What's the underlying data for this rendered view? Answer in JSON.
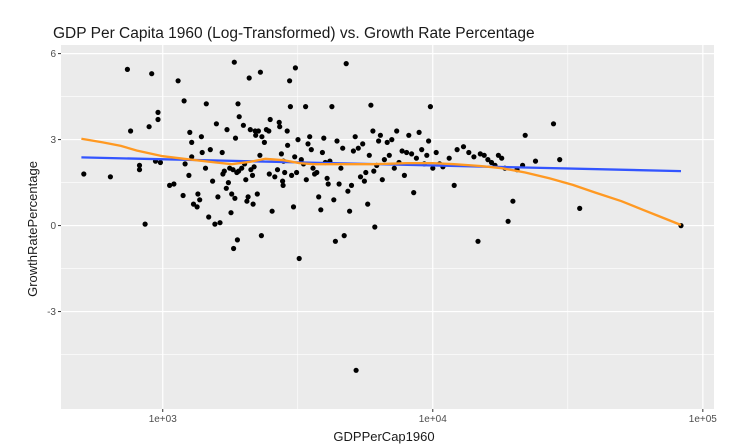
{
  "chart_data": {
    "type": "scatter",
    "title": "GDP Per Capita 1960 (Log-Transformed) vs. Growth Rate Percentage",
    "xlabel": "GDPPerCap1960",
    "ylabel": "GrowthRatePercentage",
    "x_scale": "log10",
    "xlim": [
      420,
      110000
    ],
    "ylim": [
      -6.4,
      6.3
    ],
    "x_ticks": [
      1000,
      10000,
      100000
    ],
    "x_tick_labels": [
      "1e+03",
      "1e+04",
      "1e+05"
    ],
    "y_ticks": [
      -3,
      0,
      3,
      6
    ],
    "y_tick_labels": [
      "-3",
      "0",
      "3",
      "6"
    ],
    "grid": true,
    "legend": "none",
    "colors": {
      "points": "#000000",
      "linear_fit": "#3355ff",
      "loess_fit": "#ff9922",
      "panel": "#ebebeb",
      "grid": "#ffffff"
    },
    "series": [
      {
        "kind": "points",
        "points": [
          [
            510,
            1.8
          ],
          [
            640,
            1.7
          ],
          [
            740,
            5.45
          ],
          [
            760,
            3.3
          ],
          [
            820,
            2.1
          ],
          [
            820,
            1.95
          ],
          [
            860,
            0.05
          ],
          [
            890,
            3.45
          ],
          [
            910,
            5.3
          ],
          [
            940,
            2.25
          ],
          [
            960,
            3.7
          ],
          [
            960,
            3.95
          ],
          [
            980,
            2.2
          ],
          [
            1060,
            1.4
          ],
          [
            1100,
            1.45
          ],
          [
            1140,
            5.05
          ],
          [
            1190,
            1.05
          ],
          [
            1200,
            4.35
          ],
          [
            1210,
            2.15
          ],
          [
            1250,
            1.75
          ],
          [
            1260,
            3.25
          ],
          [
            1280,
            2.9
          ],
          [
            1280,
            2.4
          ],
          [
            1300,
            0.75
          ],
          [
            1340,
            0.65
          ],
          [
            1350,
            1.1
          ],
          [
            1370,
            0.9
          ],
          [
            1390,
            3.1
          ],
          [
            1400,
            2.55
          ],
          [
            1440,
            2.0
          ],
          [
            1450,
            4.25
          ],
          [
            1480,
            0.3
          ],
          [
            1500,
            2.65
          ],
          [
            1530,
            1.55
          ],
          [
            1560,
            0.05
          ],
          [
            1580,
            3.55
          ],
          [
            1600,
            1.0
          ],
          [
            1630,
            0.1
          ],
          [
            1660,
            2.55
          ],
          [
            1670,
            1.8
          ],
          [
            1690,
            1.9
          ],
          [
            1720,
            1.3
          ],
          [
            1730,
            3.35
          ],
          [
            1750,
            1.5
          ],
          [
            1770,
            2.0
          ],
          [
            1790,
            0.45
          ],
          [
            1800,
            1.1
          ],
          [
            1820,
            1.95
          ],
          [
            1830,
            -0.8
          ],
          [
            1840,
            5.7
          ],
          [
            1850,
            0.95
          ],
          [
            1860,
            3.05
          ],
          [
            1880,
            1.85
          ],
          [
            1890,
            -0.5
          ],
          [
            1900,
            4.25
          ],
          [
            1910,
            1.9
          ],
          [
            1920,
            3.8
          ],
          [
            1960,
            2.0
          ],
          [
            1990,
            3.5
          ],
          [
            2010,
            2.15
          ],
          [
            2030,
            1.6
          ],
          [
            2050,
            0.85
          ],
          [
            2070,
            1.0
          ],
          [
            2090,
            5.15
          ],
          [
            2110,
            3.35
          ],
          [
            2120,
            1.95
          ],
          [
            2150,
            1.75
          ],
          [
            2160,
            0.75
          ],
          [
            2180,
            2.05
          ],
          [
            2200,
            3.3
          ],
          [
            2210,
            3.15
          ],
          [
            2240,
            1.1
          ],
          [
            2260,
            3.3
          ],
          [
            2290,
            2.45
          ],
          [
            2300,
            5.35
          ],
          [
            2320,
            -0.35
          ],
          [
            2330,
            3.1
          ],
          [
            2380,
            2.9
          ],
          [
            2420,
            3.35
          ],
          [
            2470,
            3.3
          ],
          [
            2480,
            1.8
          ],
          [
            2500,
            3.7
          ],
          [
            2540,
            0.5
          ],
          [
            2600,
            1.7
          ],
          [
            2660,
            1.95
          ],
          [
            2700,
            3.6
          ],
          [
            2710,
            3.45
          ],
          [
            2750,
            2.5
          ],
          [
            2780,
            1.55
          ],
          [
            2790,
            1.4
          ],
          [
            2800,
            2.25
          ],
          [
            2830,
            1.85
          ],
          [
            2890,
            3.3
          ],
          [
            2900,
            2.8
          ],
          [
            2950,
            5.05
          ],
          [
            2970,
            4.15
          ],
          [
            3000,
            1.75
          ],
          [
            3050,
            0.65
          ],
          [
            3080,
            2.4
          ],
          [
            3100,
            5.5
          ],
          [
            3130,
            1.85
          ],
          [
            3170,
            3.0
          ],
          [
            3200,
            -1.15
          ],
          [
            3260,
            2.3
          ],
          [
            3320,
            2.15
          ],
          [
            3380,
            4.15
          ],
          [
            3400,
            1.6
          ],
          [
            3450,
            2.85
          ],
          [
            3500,
            3.1
          ],
          [
            3550,
            2.65
          ],
          [
            3600,
            2.0
          ],
          [
            3650,
            1.8
          ],
          [
            3720,
            1.85
          ],
          [
            3780,
            1.0
          ],
          [
            3850,
            0.55
          ],
          [
            3900,
            2.55
          ],
          [
            3950,
            3.05
          ],
          [
            4000,
            2.2
          ],
          [
            4060,
            1.65
          ],
          [
            4100,
            1.45
          ],
          [
            4160,
            2.25
          ],
          [
            4230,
            4.15
          ],
          [
            4300,
            0.9
          ],
          [
            4360,
            -0.55
          ],
          [
            4420,
            2.95
          ],
          [
            4500,
            1.45
          ],
          [
            4570,
            2.0
          ],
          [
            4640,
            2.7
          ],
          [
            4700,
            -0.35
          ],
          [
            4780,
            5.65
          ],
          [
            4850,
            1.2
          ],
          [
            4920,
            0.5
          ],
          [
            5000,
            1.4
          ],
          [
            5080,
            2.6
          ],
          [
            5160,
            3.1
          ],
          [
            5200,
            -5.05
          ],
          [
            5300,
            2.7
          ],
          [
            5400,
            1.7
          ],
          [
            5500,
            2.85
          ],
          [
            5580,
            1.55
          ],
          [
            5650,
            1.85
          ],
          [
            5740,
            0.75
          ],
          [
            5820,
            2.45
          ],
          [
            5900,
            4.2
          ],
          [
            6000,
            3.3
          ],
          [
            6050,
            1.9
          ],
          [
            6100,
            -0.05
          ],
          [
            6200,
            2.1
          ],
          [
            6300,
            2.95
          ],
          [
            6400,
            3.15
          ],
          [
            6500,
            1.6
          ],
          [
            6620,
            2.3
          ],
          [
            6780,
            2.9
          ],
          [
            6900,
            2.45
          ],
          [
            7050,
            3.0
          ],
          [
            7200,
            2.0
          ],
          [
            7350,
            3.3
          ],
          [
            7500,
            2.2
          ],
          [
            7700,
            2.6
          ],
          [
            7850,
            1.75
          ],
          [
            8000,
            2.55
          ],
          [
            8150,
            3.15
          ],
          [
            8350,
            2.5
          ],
          [
            8500,
            1.15
          ],
          [
            8700,
            2.35
          ],
          [
            8900,
            3.25
          ],
          [
            9100,
            2.65
          ],
          [
            9300,
            2.15
          ],
          [
            9500,
            2.45
          ],
          [
            9650,
            2.95
          ],
          [
            9800,
            4.15
          ],
          [
            10000,
            2.0
          ],
          [
            10300,
            2.55
          ],
          [
            10600,
            2.15
          ],
          [
            10900,
            2.05
          ],
          [
            11500,
            2.35
          ],
          [
            12000,
            1.4
          ],
          [
            12300,
            2.65
          ],
          [
            13000,
            2.75
          ],
          [
            13600,
            2.55
          ],
          [
            14200,
            2.4
          ],
          [
            14700,
            -0.55
          ],
          [
            15000,
            2.5
          ],
          [
            15500,
            2.45
          ],
          [
            16000,
            2.3
          ],
          [
            16500,
            2.2
          ],
          [
            17000,
            2.1
          ],
          [
            17500,
            2.45
          ],
          [
            18000,
            2.35
          ],
          [
            18500,
            2.0
          ],
          [
            19000,
            0.15
          ],
          [
            19800,
            0.85
          ],
          [
            20500,
            1.95
          ],
          [
            21500,
            2.1
          ],
          [
            22000,
            3.15
          ],
          [
            24000,
            2.25
          ],
          [
            28000,
            3.55
          ],
          [
            29500,
            2.3
          ],
          [
            35000,
            0.6
          ],
          [
            83000,
            0.0
          ]
        ]
      },
      {
        "kind": "linear_fit",
        "x": [
          500,
          83000
        ],
        "y": [
          2.38,
          1.9
        ]
      },
      {
        "kind": "loess_fit",
        "x": [
          500,
          600,
          700,
          800,
          1000,
          1200,
          1500,
          1800,
          2100,
          2400,
          2800,
          3200,
          3600,
          4200,
          5000,
          6000,
          7000,
          8000,
          10000,
          12000,
          15000,
          18000,
          22000,
          27000,
          33000,
          40000,
          50000,
          60000,
          70000,
          83000
        ],
        "y": [
          3.03,
          2.9,
          2.78,
          2.62,
          2.42,
          2.33,
          2.22,
          2.14,
          2.22,
          2.33,
          2.28,
          2.18,
          2.14,
          2.14,
          2.14,
          2.14,
          2.16,
          2.18,
          2.18,
          2.14,
          2.08,
          2.0,
          1.85,
          1.65,
          1.42,
          1.15,
          0.85,
          0.55,
          0.3,
          0.02
        ]
      }
    ]
  }
}
